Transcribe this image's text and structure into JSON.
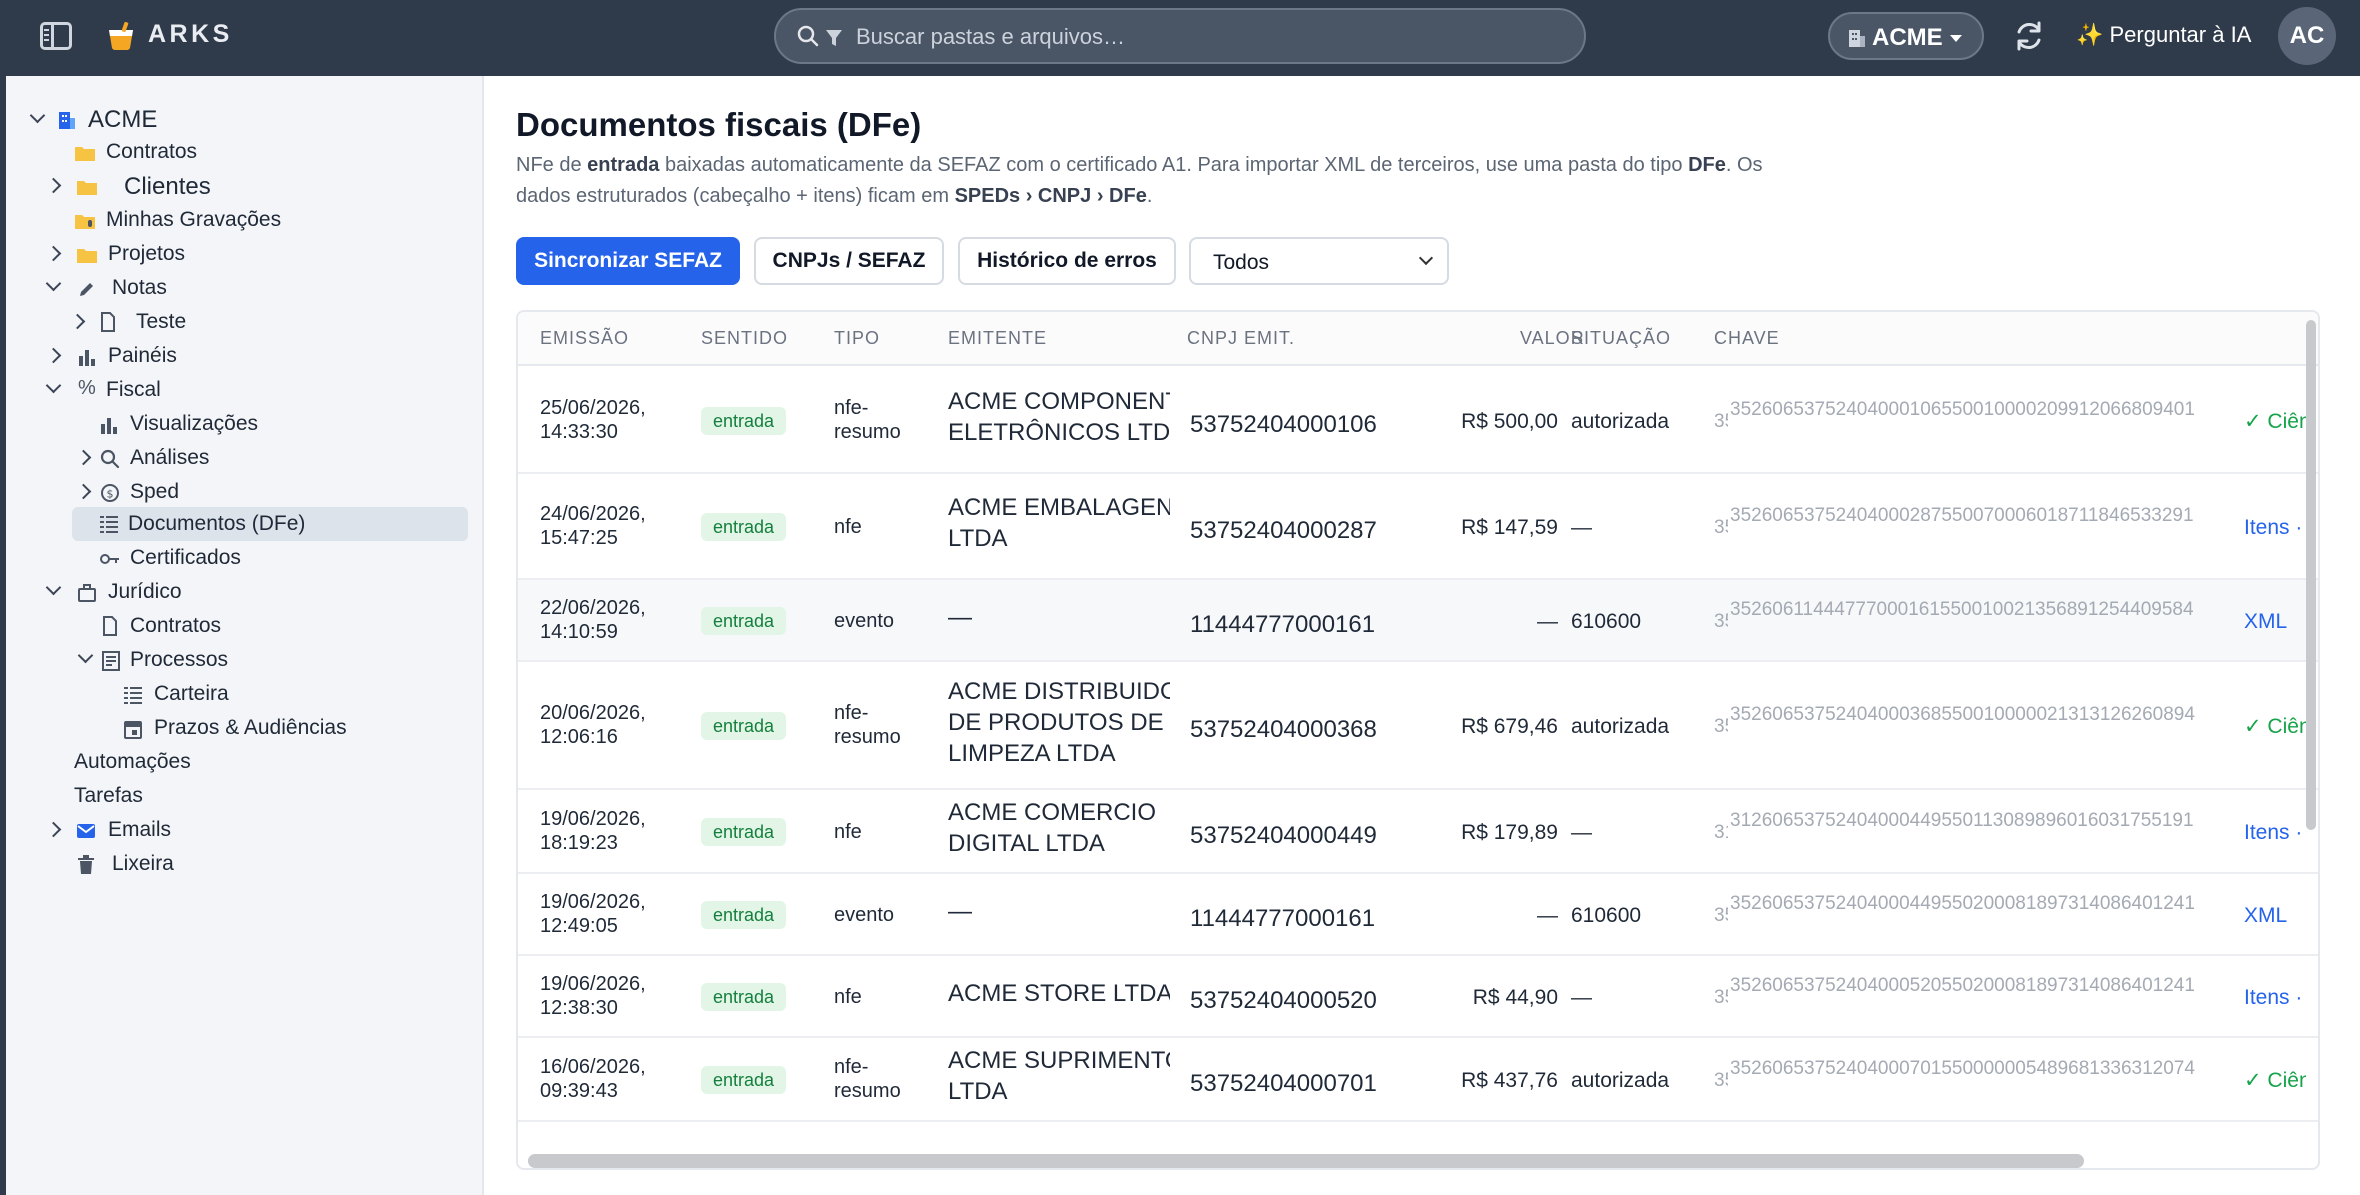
{
  "app": {
    "brand": "ARKS",
    "search_placeholder": "Buscar pastas e arquivos…",
    "company": "ACME",
    "ask_ai": "✨ Perguntar à IA",
    "avatar": "AC"
  },
  "sidebar": {
    "root": "ACME",
    "items": [
      {
        "label": "Contratos"
      },
      {
        "label": "Clientes"
      },
      {
        "label": "Minhas Gravações"
      },
      {
        "label": "Projetos"
      },
      {
        "label": "Notas"
      },
      {
        "label": "Teste"
      },
      {
        "label": "Painéis"
      },
      {
        "label": "Fiscal"
      },
      {
        "label": "Visualizações"
      },
      {
        "label": "Análises"
      },
      {
        "label": "Sped"
      },
      {
        "label": "Documentos (DFe)"
      },
      {
        "label": "Certificados"
      },
      {
        "label": "Jurídico"
      },
      {
        "label": "Contratos"
      },
      {
        "label": "Processos"
      },
      {
        "label": "Carteira"
      },
      {
        "label": "Prazos & Audiências"
      },
      {
        "label": "Automações"
      },
      {
        "label": "Tarefas"
      },
      {
        "label": "Emails"
      },
      {
        "label": "Lixeira"
      }
    ]
  },
  "page": {
    "title": "Documentos fiscais (DFe)",
    "desc": {
      "p1": "NFe de ",
      "b1": "entrada",
      "p2": " baixadas automaticamente da SEFAZ com o certificado A1. Para importar XML de terceiros, use uma pasta do tipo ",
      "b2": "DFe",
      "p3": ". Os dados estruturados (cabeçalho + itens) ficam em ",
      "b3": "SPEDs › CNPJ › DFe",
      "p4": "."
    },
    "buttons": {
      "sync": "Sincronizar SEFAZ",
      "cnpjs": "CNPJs / SEFAZ",
      "errors": "Histórico de erros"
    },
    "filter": "Todos"
  },
  "table": {
    "headers": [
      "EMISSÃO",
      "SENTIDO",
      "TIPO",
      "EMITENTE",
      "CNPJ EMIT.",
      "VALOR",
      "SITUAÇÃO",
      "CHAVE"
    ],
    "rows": [
      {
        "date": "25/06/2026,",
        "time": "14:33:30",
        "sentido": "entrada",
        "tipo1": "nfe-",
        "tipo2": "resumo",
        "em1": "ACME COMPONENTES",
        "em2": "ELETRÔNICOS LTDA",
        "em3": "",
        "cnpj": "53752404000106",
        "valor": "R$ 500,00",
        "situacao": "autorizada",
        "chave_cut": "35",
        "chave": "35260653752404000106550010000209912066809401",
        "action": "✓ Ciência"
      },
      {
        "date": "24/06/2026,",
        "time": "15:47:25",
        "sentido": "entrada",
        "tipo1": "nfe",
        "tipo2": "",
        "em1": "ACME EMBALAGENS",
        "em2": "LTDA",
        "em3": "",
        "cnpj": "53752404000287",
        "valor": "R$ 147,59",
        "situacao": "—",
        "chave_cut": "35",
        "chave": "35260653752404000287550070006018711846533291",
        "action": "Itens · DANFE"
      },
      {
        "date": "22/06/2026,",
        "time": "14:10:59",
        "sentido": "entrada",
        "tipo1": "evento",
        "tipo2": "",
        "em1": "—",
        "em2": "",
        "em3": "",
        "cnpj": "11444777000161",
        "valor": "—",
        "situacao": "610600",
        "chave_cut": "35",
        "chave": "35260611444777000161550010021356891254409584",
        "action": "XML"
      },
      {
        "date": "20/06/2026,",
        "time": "12:06:16",
        "sentido": "entrada",
        "tipo1": "nfe-",
        "tipo2": "resumo",
        "em1": "ACME DISTRIBUIDORA",
        "em2": "DE PRODUTOS DE",
        "em3": "LIMPEZA LTDA",
        "cnpj": "53752404000368",
        "valor": "R$ 679,46",
        "situacao": "autorizada",
        "chave_cut": "35",
        "chave": "35260653752404000368550010000021313126260894",
        "action": "✓ Ciência"
      },
      {
        "date": "19/06/2026,",
        "time": "18:19:23",
        "sentido": "entrada",
        "tipo1": "nfe",
        "tipo2": "",
        "em1": "ACME COMERCIO",
        "em2": "DIGITAL LTDA",
        "em3": "",
        "cnpj": "53752404000449",
        "valor": "R$ 179,89",
        "situacao": "—",
        "chave_cut": "31",
        "chave": "31260653752404000449550113089896016031755191",
        "action": "Itens · DANFE"
      },
      {
        "date": "19/06/2026,",
        "time": "12:49:05",
        "sentido": "entrada",
        "tipo1": "evento",
        "tipo2": "",
        "em1": "—",
        "em2": "",
        "em3": "",
        "cnpj": "11444777000161",
        "valor": "—",
        "situacao": "610600",
        "chave_cut": "35",
        "chave": "35260653752404000449550200081897314086401241",
        "action": "XML"
      },
      {
        "date": "19/06/2026,",
        "time": "12:38:30",
        "sentido": "entrada",
        "tipo1": "nfe",
        "tipo2": "",
        "em1": "ACME STORE LTDA",
        "em2": "",
        "em3": "",
        "cnpj": "53752404000520",
        "valor": "R$ 44,90",
        "situacao": "—",
        "chave_cut": "35",
        "chave": "35260653752404000520550200081897314086401241",
        "action": "Itens · DANFE"
      },
      {
        "date": "16/06/2026,",
        "time": "09:39:43",
        "sentido": "entrada",
        "tipo1": "nfe-",
        "tipo2": "resumo",
        "em1": "ACME SUPRIMENTOS",
        "em2": "LTDA",
        "em3": "",
        "cnpj": "53752404000701",
        "valor": "R$ 437,76",
        "situacao": "autorizada",
        "chave_cut": "35",
        "chave": "35260653752404000701550000005489681336312074",
        "action": "✓ Ciência"
      }
    ]
  },
  "colors": {
    "accent": "#2563eb",
    "topbar": "#2f3a4a",
    "badge_bg": "#e2f5e7",
    "badge_fg": "#15803d"
  }
}
